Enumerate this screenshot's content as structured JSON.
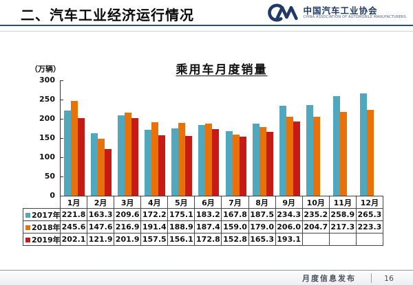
{
  "header": {
    "title": "二、汽车工业经济运行情况",
    "logo_cn": "中国汽车工业协会",
    "logo_en": "CHINA ASSOCIATION OF AUTOMOBILE MANUFACTURERS"
  },
  "chart": {
    "title": "乘用车月度销量",
    "unit_label": "（万辆）"
  },
  "chart_data": {
    "type": "bar",
    "title": "乘用车月度销量",
    "ylabel": "（万辆）",
    "categories": [
      "1月",
      "2月",
      "3月",
      "4月",
      "5月",
      "6月",
      "7月",
      "8月",
      "9月",
      "10月",
      "11月",
      "12月"
    ],
    "series": [
      {
        "name": "2017年",
        "color": "#4fa8be",
        "values": [
          221.8,
          163.3,
          209.6,
          172.2,
          175.1,
          183.2,
          167.8,
          187.5,
          234.3,
          235.2,
          258.9,
          265.3
        ]
      },
      {
        "name": "2018年",
        "color": "#e8710a",
        "values": [
          245.6,
          147.6,
          216.9,
          191.4,
          188.9,
          187.4,
          159.0,
          179.0,
          206.0,
          204.7,
          217.3,
          223.3
        ]
      },
      {
        "name": "2019年",
        "color": "#c81a14",
        "values": [
          202.1,
          121.9,
          201.9,
          157.5,
          156.1,
          172.8,
          152.8,
          165.3,
          193.1,
          null,
          null,
          null
        ]
      }
    ],
    "ylim": [
      0,
      300
    ],
    "ytick_step": 50,
    "grid": false,
    "legend_position": "table-left"
  },
  "footer": {
    "label": "月度信息发布",
    "page": "16"
  },
  "colors": {
    "header_rule": "#2b4a7d",
    "logo_navy": "#1f3a68",
    "series_2017": "#4fa8be",
    "series_2018": "#e8710a",
    "series_2019": "#c81a14"
  }
}
